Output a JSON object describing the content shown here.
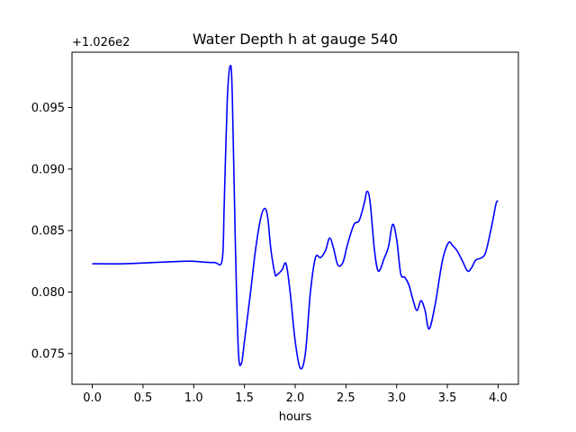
{
  "chart_data": {
    "type": "line",
    "title": "Water Depth h at gauge 540",
    "xlabel": "hours",
    "ylabel": "",
    "y_offset_label": "+1.026e2",
    "y_offset": 102.6,
    "xlim": [
      -0.2,
      4.2
    ],
    "ylim": [
      0.0725,
      0.0995
    ],
    "x_ticks": [
      0.0,
      0.5,
      1.0,
      1.5,
      2.0,
      2.5,
      3.0,
      3.5,
      4.0
    ],
    "x_tick_labels": [
      "0.0",
      "0.5",
      "1.0",
      "1.5",
      "2.0",
      "2.5",
      "3.0",
      "3.5",
      "4.0"
    ],
    "y_ticks": [
      0.075,
      0.08,
      0.085,
      0.09,
      0.095
    ],
    "y_tick_labels": [
      "0.075",
      "0.080",
      "0.085",
      "0.090",
      "0.095"
    ],
    "grid": false,
    "series": [
      {
        "color": "#0000ff",
        "x": [
          0.0,
          0.3,
          0.6,
          0.9,
          1.0,
          1.2,
          1.28,
          1.3,
          1.33,
          1.36,
          1.38,
          1.41,
          1.44,
          1.47,
          1.5,
          1.56,
          1.61,
          1.66,
          1.7,
          1.73,
          1.76,
          1.8,
          1.82,
          1.87,
          1.91,
          1.95,
          2.0,
          2.05,
          2.1,
          2.15,
          2.2,
          2.25,
          2.3,
          2.34,
          2.38,
          2.42,
          2.47,
          2.52,
          2.58,
          2.63,
          2.68,
          2.71,
          2.74,
          2.78,
          2.82,
          2.88,
          2.92,
          2.96,
          3.0,
          3.04,
          3.08,
          3.12,
          3.16,
          3.2,
          3.24,
          3.28,
          3.32,
          3.38,
          3.45,
          3.51,
          3.55,
          3.6,
          3.65,
          3.7,
          3.74,
          3.78,
          3.84,
          3.88,
          3.94,
          3.98,
          4.0
        ],
        "y": [
          0.0823,
          0.0823,
          0.0824,
          0.0825,
          0.0825,
          0.0824,
          0.0826,
          0.087,
          0.0955,
          0.0984,
          0.096,
          0.084,
          0.0752,
          0.0742,
          0.076,
          0.08,
          0.0835,
          0.086,
          0.0868,
          0.086,
          0.0835,
          0.0815,
          0.0814,
          0.0818,
          0.0823,
          0.08,
          0.076,
          0.0738,
          0.075,
          0.08,
          0.0828,
          0.0828,
          0.0834,
          0.0844,
          0.0835,
          0.0822,
          0.0824,
          0.084,
          0.0855,
          0.0858,
          0.0872,
          0.0882,
          0.0872,
          0.0835,
          0.0817,
          0.0828,
          0.0837,
          0.0855,
          0.0843,
          0.0815,
          0.0812,
          0.0806,
          0.0794,
          0.0785,
          0.0793,
          0.0785,
          0.077,
          0.079,
          0.0825,
          0.084,
          0.0838,
          0.0833,
          0.0825,
          0.0817,
          0.082,
          0.0826,
          0.0828,
          0.0833,
          0.0855,
          0.0872,
          0.0874
        ]
      }
    ]
  }
}
